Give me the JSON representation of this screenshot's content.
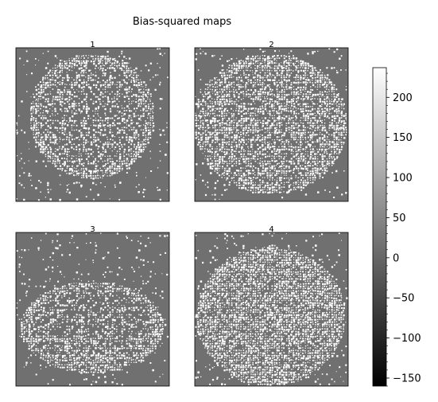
{
  "figure": {
    "title": "Bias-squared maps"
  },
  "chart_data": {
    "type": "heatmap",
    "title": "Bias-squared maps",
    "panels": [
      {
        "label": "1",
        "shape": "ellipse-ring",
        "cx": 0.5,
        "cy": 0.45,
        "rx": 0.41,
        "ry": 0.41,
        "interior_density": 0.55,
        "ring_density": 0.92
      },
      {
        "label": "2",
        "shape": "rounded-blob",
        "cx": 0.5,
        "cy": 0.5,
        "rx": 0.5,
        "ry": 0.46,
        "interior_density": 0.75,
        "ring_density": 0.9
      },
      {
        "label": "3",
        "shape": "lower-ellipse",
        "cx": 0.5,
        "cy": 0.62,
        "rx": 0.47,
        "ry": 0.3,
        "interior_density": 0.5,
        "ring_density": 0.9
      },
      {
        "label": "4",
        "shape": "filled-disk",
        "cx": 0.5,
        "cy": 0.55,
        "rx": 0.49,
        "ry": 0.45,
        "interior_density": 0.9,
        "ring_density": 0.95
      }
    ],
    "background_value": 15,
    "foreground_value": 235,
    "colorbar": {
      "colormap": "gray",
      "vmin": -160,
      "vmax": 237,
      "ticks": [
        200,
        150,
        100,
        50,
        0,
        -50,
        -100,
        -150
      ],
      "tick_labels": [
        "200",
        "150",
        "100",
        "50",
        "0",
        "−50",
        "−100",
        "−150"
      ],
      "minor_step": 10
    }
  }
}
